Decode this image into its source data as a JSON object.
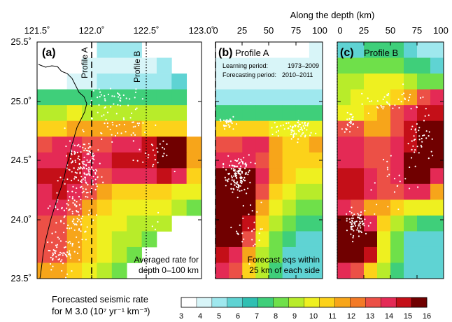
{
  "header": {
    "depth_axis_title": "Along the depth (km)"
  },
  "colors": {
    "scale": [
      "#ffffff",
      "#d8f5f8",
      "#9fe8ee",
      "#5fd3d3",
      "#2fbfb2",
      "#3fcf7a",
      "#6fe04a",
      "#b8ec2a",
      "#eef020",
      "#fcd21a",
      "#f7a51a",
      "#f37a26",
      "#ec5046",
      "#e42a55",
      "#c40f18",
      "#700000"
    ],
    "quake": "#ffffff",
    "coast": "#000000"
  },
  "panels": {
    "a": {
      "label": "(a)",
      "profile_a_label": "Profile A",
      "profile_b_label": "Profile B",
      "note_line1": "Averaged rate for",
      "note_line2": "depth 0–100 km",
      "lon_ticks": [
        "121.5˚",
        "122.0˚",
        "122.5˚",
        "123.0˚"
      ],
      "lat_ticks": [
        "25.5˚",
        "25.0˚",
        "24.5˚",
        "24.0˚",
        "23.5˚"
      ]
    },
    "b": {
      "label": "(b)",
      "title": "Profile A",
      "learning_label": "Learning period:",
      "learning_value": "1973–2009",
      "forecast_label": "Forecasting period:",
      "forecast_value": "2010–2011",
      "note_line1": "Forecast eqs within",
      "note_line2": "25 km of each side",
      "depth_ticks": [
        "0",
        "25",
        "50",
        "75",
        "100"
      ]
    },
    "c": {
      "label": "(c)",
      "title": "Profile B",
      "depth_ticks": [
        "0",
        "25",
        "50",
        "75",
        "100"
      ]
    }
  },
  "colorbar": {
    "title_line1": "Forecasted seismic rate",
    "title_line2": "for M   3.0 (10⁷ yr⁻¹ km⁻³)",
    "ticks": [
      "3",
      "4",
      "5",
      "6",
      "7",
      "8",
      "9",
      "10",
      "11",
      "12",
      "13",
      "14",
      "15",
      "16"
    ]
  },
  "chart_data": [
    {
      "type": "heatmap",
      "panel": "a",
      "x_axis": "longitude",
      "y_axis": "latitude",
      "xlim": [
        121.5,
        123.0
      ],
      "ylim": [
        23.5,
        25.5
      ],
      "xticks": [
        121.5,
        122.0,
        122.5,
        123.0
      ],
      "yticks": [
        25.5,
        25.0,
        24.5,
        24.0,
        23.5
      ],
      "value_range": [
        3,
        16
      ],
      "grid_cols": 11,
      "grid_rows": 15,
      "rows": [
        [
          null,
          null,
          null,
          null,
          5,
          5,
          5,
          null,
          null,
          null,
          null
        ],
        [
          null,
          null,
          null,
          4,
          4,
          4,
          4,
          4,
          5,
          null,
          null
        ],
        [
          null,
          null,
          4,
          4,
          5,
          5,
          5,
          5,
          5,
          6,
          null
        ],
        [
          7,
          7,
          7,
          7,
          7,
          7,
          7,
          7,
          7,
          7,
          null
        ],
        [
          9,
          9,
          10,
          9,
          9,
          9,
          9,
          9,
          9,
          9,
          null
        ],
        [
          11,
          11,
          12,
          12,
          12,
          12,
          12,
          11,
          11,
          11,
          null
        ],
        [
          13,
          14,
          14,
          13,
          13,
          14,
          14,
          15,
          16,
          16,
          12
        ],
        [
          14,
          14,
          15,
          14,
          14,
          15,
          15,
          15,
          16,
          16,
          12
        ],
        [
          15,
          15,
          15,
          14,
          13,
          14,
          14,
          14,
          15,
          14,
          11
        ],
        [
          14,
          15,
          14,
          13,
          12,
          11,
          11,
          11,
          11,
          10,
          10
        ],
        [
          14,
          14,
          13,
          12,
          11,
          10,
          10,
          10,
          10,
          9,
          8
        ],
        [
          13,
          13,
          12,
          11,
          10,
          10,
          9,
          9,
          9,
          null,
          null
        ],
        [
          13,
          13,
          12,
          11,
          10,
          9,
          9,
          8,
          null,
          null,
          null
        ],
        [
          13,
          13,
          12,
          11,
          10,
          9,
          8,
          null,
          null,
          null,
          null
        ],
        [
          12,
          12,
          11,
          10,
          9,
          8,
          null,
          null,
          null,
          null,
          null
        ]
      ],
      "profiles": [
        {
          "name": "Profile A",
          "lon": 122.0,
          "style": "dashed"
        },
        {
          "name": "Profile B",
          "lon": 122.5,
          "style": "dotted"
        }
      ]
    },
    {
      "type": "heatmap",
      "panel": "b",
      "x_axis": "depth_km",
      "y_axis": "latitude",
      "xlim": [
        0,
        100
      ],
      "ylim": [
        23.5,
        25.5
      ],
      "xticks": [
        0,
        25,
        50,
        75,
        100
      ],
      "value_range": [
        3,
        16
      ],
      "grid_cols": 8,
      "grid_rows": 15,
      "rows": [
        [
          3,
          3,
          3,
          3,
          3,
          3,
          3,
          4
        ],
        [
          4,
          4,
          4,
          4,
          4,
          4,
          4,
          4
        ],
        [
          4,
          4,
          4,
          4,
          4,
          4,
          4,
          4
        ],
        [
          5,
          5,
          5,
          5,
          5,
          5,
          5,
          5
        ],
        [
          7,
          7,
          7,
          7,
          7,
          7,
          7,
          7
        ],
        [
          11,
          11,
          11,
          11,
          10,
          10,
          10,
          10
        ],
        [
          13,
          13,
          14,
          14,
          12,
          11,
          11,
          12
        ],
        [
          14,
          14,
          14,
          13,
          12,
          11,
          11,
          11
        ],
        [
          16,
          16,
          16,
          14,
          12,
          11,
          10,
          10
        ],
        [
          16,
          16,
          16,
          13,
          11,
          10,
          9,
          9
        ],
        [
          16,
          16,
          16,
          12,
          10,
          9,
          8,
          8
        ],
        [
          16,
          16,
          15,
          11,
          9,
          8,
          7,
          7
        ],
        [
          16,
          16,
          13,
          10,
          8,
          7,
          6,
          6
        ],
        [
          15,
          14,
          12,
          9,
          8,
          6,
          6,
          6
        ],
        [
          14,
          13,
          11,
          9,
          7,
          6,
          6,
          6
        ]
      ]
    },
    {
      "type": "heatmap",
      "panel": "c",
      "x_axis": "depth_km",
      "y_axis": "latitude",
      "xlim": [
        0,
        100
      ],
      "ylim": [
        23.5,
        25.5
      ],
      "xticks": [
        0,
        25,
        50,
        75,
        100
      ],
      "value_range": [
        3,
        16
      ],
      "grid_cols": 8,
      "grid_rows": 15,
      "rows": [
        [
          6,
          6,
          7,
          7,
          7,
          6,
          5,
          5
        ],
        [
          8,
          8,
          8,
          8,
          8,
          7,
          7,
          6
        ],
        [
          9,
          9,
          10,
          10,
          10,
          9,
          8,
          8
        ],
        [
          9,
          10,
          10,
          10,
          11,
          12,
          13,
          14
        ],
        [
          10,
          10,
          11,
          12,
          13,
          14,
          15,
          15
        ],
        [
          13,
          13,
          12,
          12,
          13,
          15,
          16,
          16
        ],
        [
          14,
          14,
          13,
          13,
          14,
          15,
          16,
          16
        ],
        [
          14,
          14,
          13,
          13,
          14,
          16,
          16,
          16
        ],
        [
          15,
          15,
          14,
          13,
          14,
          16,
          16,
          14
        ],
        [
          15,
          15,
          14,
          13,
          13,
          14,
          14,
          12
        ],
        [
          14,
          13,
          12,
          12,
          11,
          10,
          10,
          10
        ],
        [
          16,
          16,
          14,
          11,
          9,
          8,
          7,
          7
        ],
        [
          16,
          16,
          16,
          10,
          8,
          6,
          6,
          6
        ],
        [
          16,
          16,
          15,
          10,
          8,
          6,
          6,
          6
        ],
        [
          14,
          13,
          11,
          9,
          7,
          6,
          6,
          6
        ]
      ]
    }
  ]
}
